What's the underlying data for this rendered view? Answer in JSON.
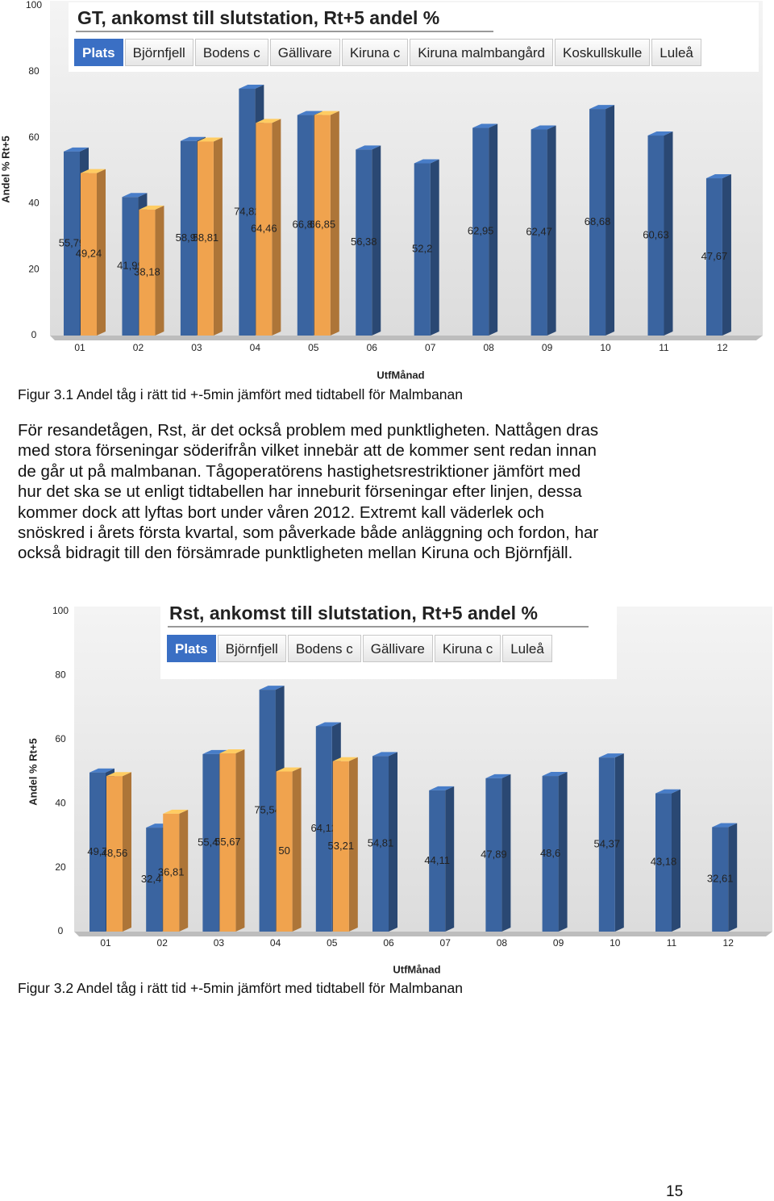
{
  "chart_data": [
    {
      "type": "bar",
      "title": "GT, ankomst till slutstation, Rt+5 andel %",
      "tabs": [
        "Plats",
        "Björnfjell",
        "Bodens c",
        "Gällivare",
        "Kiruna c",
        "Kiruna malmbangård",
        "Koskullskulle",
        "Luleå"
      ],
      "categories": [
        "01",
        "02",
        "03",
        "04",
        "05",
        "06",
        "07",
        "08",
        "09",
        "10",
        "11",
        "12"
      ],
      "series": [
        {
          "color": "#3a64a0",
          "values": [
            55.79,
            41.99,
            58.99,
            74.82,
            66.85,
            56.38,
            52.2,
            62.95,
            62.47,
            68.68,
            60.63,
            47.67
          ],
          "value_labels": [
            "55,79",
            "41,99",
            "58,99",
            "74,82",
            "66,85",
            "56,38",
            "52,2",
            "62,95",
            "62,47",
            "68,68",
            "60,63",
            "47,67"
          ]
        },
        {
          "color": "#f0a34e",
          "values": [
            49.24,
            38.18,
            58.81,
            64.46,
            66.85,
            null,
            null,
            null,
            null,
            null,
            null,
            null
          ],
          "value_labels": [
            "49,24",
            "38,18",
            "58,81",
            "64,46",
            "66,85",
            null,
            null,
            null,
            null,
            null,
            null,
            null
          ]
        }
      ],
      "ylim": [
        0,
        100
      ],
      "yticks": [
        0,
        20,
        40,
        60,
        80,
        100
      ],
      "ylabel": "Andel % Rt+5",
      "xlabel": "UtfMånad",
      "grid": false
    },
    {
      "type": "bar",
      "title": "Rst, ankomst till slutstation, Rt+5 andel %",
      "tabs": [
        "Plats",
        "Björnfjell",
        "Bodens c",
        "Gällivare",
        "Kiruna c",
        "Luleå"
      ],
      "categories": [
        "01",
        "02",
        "03",
        "04",
        "05",
        "06",
        "07",
        "08",
        "09",
        "10",
        "11",
        "12"
      ],
      "series": [
        {
          "color": "#3a64a0",
          "values": [
            49.7,
            32.47,
            55.45,
            75.54,
            64.12,
            54.81,
            44.11,
            47.89,
            48.6,
            54.37,
            43.18,
            32.61
          ],
          "value_labels": [
            "49,7",
            "32,47",
            "55,45",
            "75,54",
            "64,12",
            "54,81",
            "44,11",
            "47,89",
            "48,6",
            "54,37",
            "43,18",
            "32,61"
          ]
        },
        {
          "color": "#f0a34e",
          "values": [
            48.56,
            36.81,
            55.67,
            50,
            53.21,
            null,
            null,
            null,
            null,
            null,
            null,
            null
          ],
          "value_labels": [
            "48,56",
            "36,81",
            "55,67",
            "50",
            "53,21",
            null,
            null,
            null,
            null,
            null,
            null,
            null
          ]
        }
      ],
      "ylim": [
        0,
        100
      ],
      "yticks": [
        0,
        20,
        40,
        60,
        80,
        100
      ],
      "ylabel": "Andel % Rt+5",
      "xlabel": "UtfMånad",
      "grid": false
    }
  ],
  "captions": [
    "Figur 3.1 Andel tåg i rätt tid +-5min jämfört med tidtabell för Malmbanan",
    "Figur 3.2 Andel tåg i rätt tid +-5min jämfört med tidtabell för Malmbanan"
  ],
  "paragraph": [
    "För resandetågen, Rst, är det också problem med punktligheten. Nattågen dras",
    "med stora förseningar söderifrån vilket innebär att de kommer sent redan innan",
    "de går ut på malmbanan. Tågoperatörens hastighetsrestriktioner jämfört med",
    "hur det ska se ut enligt tidtabellen har inneburit förseningar efter linjen, dessa",
    "kommer dock att lyftas bort under våren 2012. Extremt kall väderlek och",
    "snöskred i årets första kvartal, som påverkade både anläggning och fordon, har",
    "också bidragit till den försämrade punktligheten mellan Kiruna och Björnfjäll."
  ],
  "page_number": "15"
}
